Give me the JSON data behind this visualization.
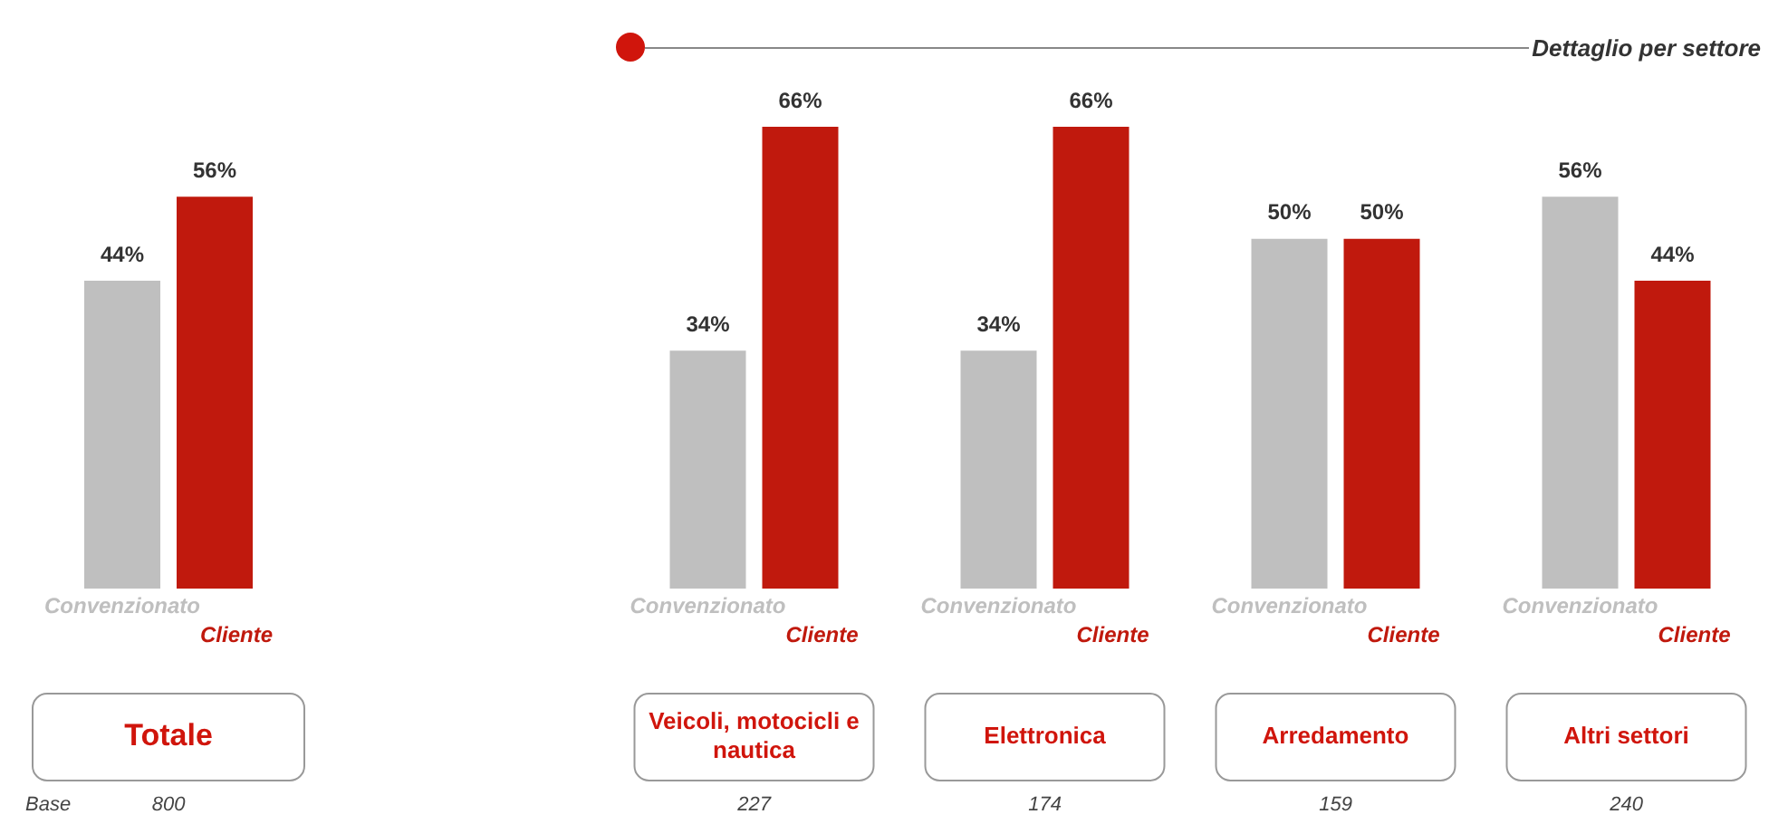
{
  "chart_data": [
    {
      "type": "bar",
      "categories": [
        "Totale"
      ],
      "series": [
        {
          "name": "Convenzionato",
          "color": "#bfbfbf",
          "values": [
            44
          ],
          "value_labels": [
            "44%"
          ]
        },
        {
          "name": "Cliente",
          "color": "#c0190d",
          "values": [
            56
          ],
          "value_labels": [
            "56%"
          ]
        }
      ],
      "annotations": [
        "Base",
        "800"
      ]
    },
    {
      "type": "bar",
      "title": "Dettaglio per settore",
      "categories": [
        "Veicoli, motocicli e nautica",
        "Elettronica",
        "Arredamento",
        "Altri settori"
      ],
      "series": [
        {
          "name": "Convenzionato",
          "color": "#bfbfbf",
          "values": [
            34,
            34,
            50,
            56
          ],
          "value_labels": [
            "34%",
            "34%",
            "50%",
            "56%"
          ]
        },
        {
          "name": "Cliente",
          "color": "#c0190d",
          "values": [
            66,
            66,
            50,
            44
          ],
          "value_labels": [
            "66%",
            "66%",
            "50%",
            "44%"
          ]
        }
      ],
      "annotations": [
        "227",
        "174",
        "159",
        "240"
      ]
    }
  ]
}
